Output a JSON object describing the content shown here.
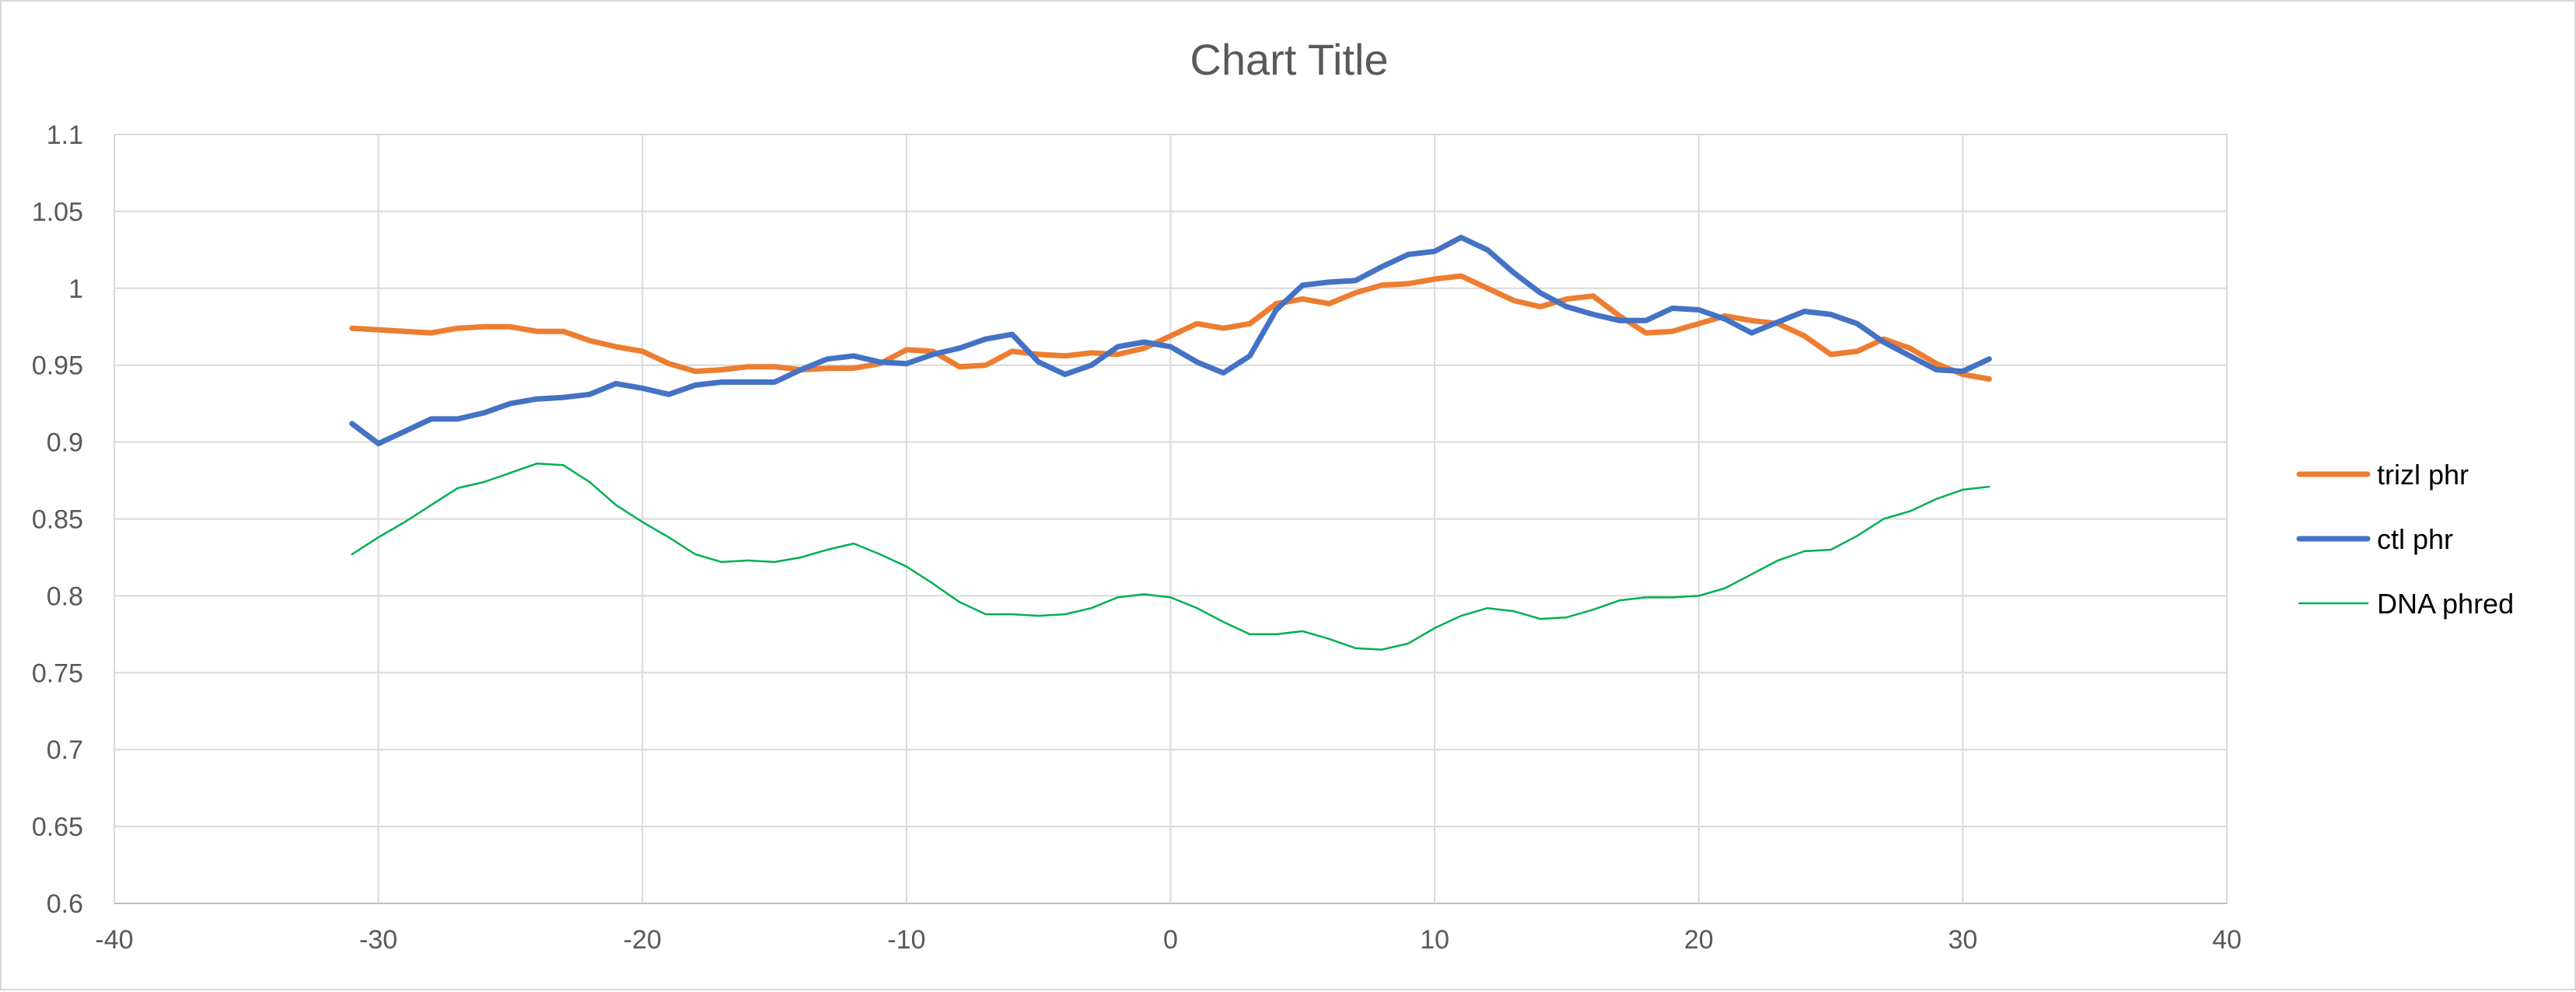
{
  "chart_data": {
    "type": "line",
    "title": "Chart Title",
    "xlim": [
      -40,
      40
    ],
    "ylim": [
      0.6,
      1.1
    ],
    "x_ticks": [
      -40,
      -30,
      -20,
      -10,
      0,
      10,
      20,
      30,
      40
    ],
    "y_ticks": [
      0.6,
      0.65,
      0.7,
      0.75,
      0.8,
      0.85,
      0.9,
      0.95,
      1,
      1.05,
      1.1
    ],
    "x_tick_labels": [
      "-40",
      "-30",
      "-20",
      "-10",
      "0",
      "10",
      "20",
      "30",
      "40"
    ],
    "y_tick_labels": [
      "0.6",
      "0.65",
      "0.7",
      "0.75",
      "0.8",
      "0.85",
      "0.9",
      "0.95",
      "1",
      "1.05",
      "1.1"
    ],
    "grid": true,
    "legend_position": "right",
    "x": [
      -31,
      -30,
      -29,
      -28,
      -27,
      -26,
      -25,
      -24,
      -23,
      -22,
      -21,
      -20,
      -19,
      -18,
      -17,
      -16,
      -15,
      -14,
      -13,
      -12,
      -11,
      -10,
      -9,
      -8,
      -7,
      -6,
      -5,
      -4,
      -3,
      -2,
      -1,
      0,
      1,
      2,
      3,
      4,
      5,
      6,
      7,
      8,
      9,
      10,
      11,
      12,
      13,
      14,
      15,
      16,
      17,
      18,
      19,
      20,
      21,
      22,
      23,
      24,
      25,
      26,
      27,
      28,
      29,
      30,
      31
    ],
    "series": [
      {
        "name": "trizl phr",
        "color": "#ED7D31",
        "width": 7,
        "values": [
          0.974,
          0.973,
          0.972,
          0.971,
          0.974,
          0.975,
          0.975,
          0.972,
          0.972,
          0.966,
          0.962,
          0.959,
          0.951,
          0.946,
          0.947,
          0.949,
          0.949,
          0.947,
          0.948,
          0.948,
          0.951,
          0.96,
          0.959,
          0.949,
          0.95,
          0.959,
          0.957,
          0.956,
          0.958,
          0.957,
          0.961,
          0.969,
          0.977,
          0.974,
          0.977,
          0.99,
          0.993,
          0.99,
          0.997,
          1.002,
          1.003,
          1.006,
          1.008,
          1.0,
          0.992,
          0.988,
          0.993,
          0.995,
          0.982,
          0.971,
          0.972,
          0.977,
          0.982,
          0.979,
          0.977,
          0.969,
          0.957,
          0.959,
          0.967,
          0.961,
          0.951,
          0.944,
          0.941
        ]
      },
      {
        "name": "ctl phr",
        "color": "#4472C4",
        "width": 7,
        "values": [
          0.912,
          0.899,
          0.907,
          0.915,
          0.915,
          0.919,
          0.925,
          0.928,
          0.929,
          0.931,
          0.938,
          0.935,
          0.931,
          0.937,
          0.939,
          0.939,
          0.939,
          0.947,
          0.954,
          0.956,
          0.952,
          0.951,
          0.957,
          0.961,
          0.967,
          0.97,
          0.952,
          0.944,
          0.95,
          0.962,
          0.965,
          0.962,
          0.952,
          0.945,
          0.956,
          0.986,
          1.002,
          1.004,
          1.005,
          1.014,
          1.022,
          1.024,
          1.033,
          1.025,
          1.01,
          0.997,
          0.988,
          0.983,
          0.979,
          0.979,
          0.987,
          0.986,
          0.98,
          0.971,
          0.978,
          0.985,
          0.983,
          0.977,
          0.965,
          0.956,
          0.947,
          0.946,
          0.954
        ]
      },
      {
        "name": "DNA phred",
        "color": "#00B050",
        "width": 2.5,
        "values": [
          0.827,
          0.838,
          0.848,
          0.859,
          0.87,
          0.874,
          0.88,
          0.886,
          0.885,
          0.874,
          0.859,
          0.848,
          0.838,
          0.827,
          0.822,
          0.823,
          0.822,
          0.825,
          0.83,
          0.834,
          0.827,
          0.819,
          0.808,
          0.796,
          0.788,
          0.788,
          0.787,
          0.788,
          0.792,
          0.799,
          0.801,
          0.799,
          0.792,
          0.783,
          0.775,
          0.775,
          0.777,
          0.772,
          0.766,
          0.765,
          0.769,
          0.779,
          0.787,
          0.792,
          0.79,
          0.785,
          0.786,
          0.791,
          0.797,
          0.799,
          0.799,
          0.8,
          0.805,
          0.814,
          0.823,
          0.829,
          0.83,
          0.839,
          0.85,
          0.855,
          0.863,
          0.869,
          0.871
        ]
      }
    ]
  }
}
